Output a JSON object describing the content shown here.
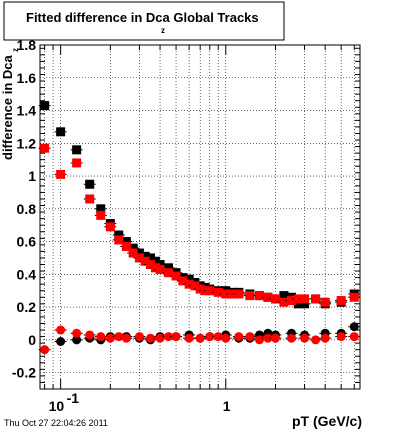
{
  "chart_data": {
    "type": "scatter",
    "title_main": "Fitted difference in Dca",
    "title_sub": "z",
    "title_tail": "Global Tracks",
    "xlabel": "pT (GeV/c)",
    "ylabel": "difference in Dca",
    "ylabel_sub": "z",
    "x_scale": "log",
    "xlim": [
      0.075,
      6.5
    ],
    "ylim": [
      -0.3,
      1.8
    ],
    "x_ticks": [
      {
        "value": 0.1,
        "label": "10",
        "exp": "-1"
      },
      {
        "value": 1,
        "label": "1",
        "exp": ""
      }
    ],
    "y_ticks": [
      {
        "value": -0.2,
        "label": "-0.2"
      },
      {
        "value": 0,
        "label": "0"
      },
      {
        "value": 0.2,
        "label": "0.2"
      },
      {
        "value": 0.4,
        "label": "0.4"
      },
      {
        "value": 0.6,
        "label": "0.6"
      },
      {
        "value": 0.8,
        "label": "0.8"
      },
      {
        "value": 1,
        "label": "1"
      },
      {
        "value": 1.2,
        "label": "1.2"
      },
      {
        "value": 1.4,
        "label": "1.4"
      },
      {
        "value": 1.6,
        "label": "1.6"
      },
      {
        "value": 1.8,
        "label": "1.8"
      }
    ],
    "grid": true,
    "series": [
      {
        "marker": "square",
        "color": "#000000",
        "points": [
          [
            0.08,
            1.43
          ],
          [
            0.1,
            1.27
          ],
          [
            0.125,
            1.16
          ],
          [
            0.15,
            0.95
          ],
          [
            0.175,
            0.8
          ],
          [
            0.2,
            0.71
          ],
          [
            0.225,
            0.64
          ],
          [
            0.25,
            0.6
          ],
          [
            0.275,
            0.56
          ],
          [
            0.3,
            0.53
          ],
          [
            0.325,
            0.51
          ],
          [
            0.35,
            0.5
          ],
          [
            0.375,
            0.48
          ],
          [
            0.4,
            0.46
          ],
          [
            0.45,
            0.44
          ],
          [
            0.5,
            0.41
          ],
          [
            0.55,
            0.38
          ],
          [
            0.6,
            0.37
          ],
          [
            0.65,
            0.35
          ],
          [
            0.7,
            0.33
          ],
          [
            0.75,
            0.32
          ],
          [
            0.8,
            0.31
          ],
          [
            0.9,
            0.3
          ],
          [
            1.0,
            0.3
          ],
          [
            1.1,
            0.29
          ],
          [
            1.2,
            0.29
          ],
          [
            1.4,
            0.28
          ],
          [
            1.6,
            0.27
          ],
          [
            1.8,
            0.26
          ],
          [
            2.0,
            0.25
          ],
          [
            2.25,
            0.27
          ],
          [
            2.5,
            0.26
          ],
          [
            2.75,
            0.22
          ],
          [
            3.0,
            0.22
          ],
          [
            3.5,
            0.25
          ],
          [
            4.0,
            0.22
          ],
          [
            5.0,
            0.23
          ],
          [
            6.0,
            0.28
          ]
        ]
      },
      {
        "marker": "square",
        "color": "#ff0000",
        "points": [
          [
            0.08,
            1.17
          ],
          [
            0.1,
            1.01
          ],
          [
            0.125,
            1.08
          ],
          [
            0.15,
            0.86
          ],
          [
            0.175,
            0.76
          ],
          [
            0.2,
            0.69
          ],
          [
            0.225,
            0.61
          ],
          [
            0.25,
            0.57
          ],
          [
            0.275,
            0.53
          ],
          [
            0.3,
            0.5
          ],
          [
            0.325,
            0.48
          ],
          [
            0.35,
            0.46
          ],
          [
            0.375,
            0.44
          ],
          [
            0.4,
            0.43
          ],
          [
            0.45,
            0.41
          ],
          [
            0.5,
            0.39
          ],
          [
            0.55,
            0.36
          ],
          [
            0.6,
            0.34
          ],
          [
            0.65,
            0.33
          ],
          [
            0.7,
            0.31
          ],
          [
            0.75,
            0.3
          ],
          [
            0.8,
            0.3
          ],
          [
            0.9,
            0.29
          ],
          [
            1.0,
            0.28
          ],
          [
            1.1,
            0.28
          ],
          [
            1.2,
            0.28
          ],
          [
            1.4,
            0.27
          ],
          [
            1.6,
            0.27
          ],
          [
            1.8,
            0.26
          ],
          [
            2.0,
            0.25
          ],
          [
            2.25,
            0.23
          ],
          [
            2.5,
            0.24
          ],
          [
            2.75,
            0.25
          ],
          [
            3.0,
            0.25
          ],
          [
            3.5,
            0.25
          ],
          [
            4.0,
            0.23
          ],
          [
            5.0,
            0.24
          ],
          [
            6.0,
            0.26
          ]
        ]
      },
      {
        "marker": "circle",
        "color": "#000000",
        "points": [
          [
            0.1,
            -0.01
          ],
          [
            0.125,
            0.0
          ],
          [
            0.15,
            0.01
          ],
          [
            0.175,
            0.0
          ],
          [
            0.2,
            0.02
          ],
          [
            0.25,
            0.02
          ],
          [
            0.3,
            0.01
          ],
          [
            0.35,
            0.0
          ],
          [
            0.4,
            0.02
          ],
          [
            0.5,
            0.02
          ],
          [
            0.6,
            0.03
          ],
          [
            0.7,
            0.01
          ],
          [
            0.8,
            0.02
          ],
          [
            1.0,
            0.03
          ],
          [
            1.2,
            0.01
          ],
          [
            1.4,
            0.01
          ],
          [
            1.6,
            0.03
          ],
          [
            1.8,
            0.04
          ],
          [
            2.0,
            0.03
          ],
          [
            2.5,
            0.04
          ],
          [
            3.0,
            0.03
          ],
          [
            4.0,
            0.04
          ],
          [
            5.0,
            0.04
          ],
          [
            6.0,
            0.08
          ]
        ]
      },
      {
        "marker": "circle",
        "color": "#ff0000",
        "points": [
          [
            0.08,
            -0.06
          ],
          [
            0.1,
            0.06
          ],
          [
            0.125,
            0.04
          ],
          [
            0.15,
            0.03
          ],
          [
            0.175,
            0.02
          ],
          [
            0.2,
            0.01
          ],
          [
            0.225,
            0.02
          ],
          [
            0.25,
            0.01
          ],
          [
            0.3,
            0.02
          ],
          [
            0.35,
            0.01
          ],
          [
            0.4,
            0.01
          ],
          [
            0.45,
            0.02
          ],
          [
            0.5,
            0.02
          ],
          [
            0.6,
            0.01
          ],
          [
            0.7,
            0.01
          ],
          [
            0.8,
            0.02
          ],
          [
            0.9,
            0.02
          ],
          [
            1.0,
            0.01
          ],
          [
            1.2,
            0.02
          ],
          [
            1.4,
            0.02
          ],
          [
            1.6,
            0.0
          ],
          [
            1.8,
            0.01
          ],
          [
            2.0,
            0.01
          ],
          [
            2.5,
            0.01
          ],
          [
            3.0,
            0.01
          ],
          [
            3.5,
            0.0
          ],
          [
            4.0,
            0.01
          ],
          [
            5.0,
            0.02
          ],
          [
            6.0,
            0.02
          ]
        ]
      }
    ]
  },
  "footer": {
    "timestamp": "Thu Oct 27 22:04:26 2011"
  }
}
